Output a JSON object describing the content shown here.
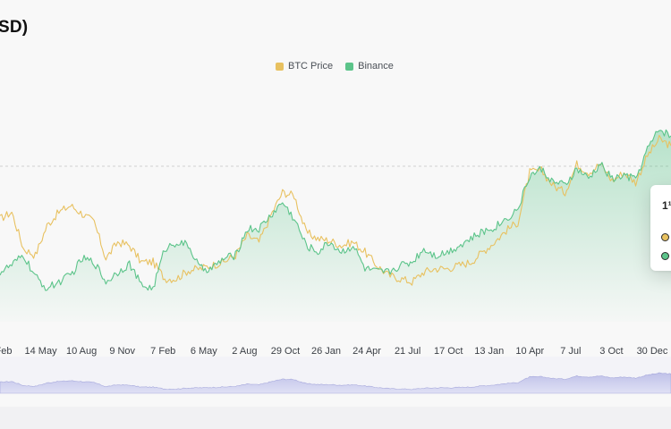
{
  "header": {
    "title": "SD)"
  },
  "legend": [
    {
      "label": "BTC Price",
      "color": "#e8c160"
    },
    {
      "label": "Binance",
      "color": "#5cc48a"
    }
  ],
  "tooltip": {
    "date_fragment": "1¹"
  },
  "chart_data": {
    "type": "line",
    "title": "SD)",
    "x_tick_labels": [
      "Feb",
      "14 May",
      "10 Aug",
      "9 Nov",
      "7 Feb",
      "6 May",
      "2 Aug",
      "29 Oct",
      "26 Jan",
      "24 Apr",
      "21 Jul",
      "17 Oct",
      "13 Jan",
      "10 Apr",
      "7 Jul",
      "3 Oct",
      "30 Dec"
    ],
    "series": [
      {
        "name": "BTC Price",
        "color": "#e8c160",
        "values": [
          62,
          66,
          44,
          40,
          58,
          66,
          70,
          65,
          60,
          38,
          48,
          46,
          36,
          36,
          26,
          26,
          31,
          32,
          34,
          36,
          40,
          52,
          48,
          64,
          78,
          76,
          54,
          50,
          49,
          46,
          48,
          42,
          34,
          28,
          26,
          24,
          30,
          32,
          32,
          34,
          36,
          42,
          48,
          55,
          60,
          90,
          91,
          82,
          78,
          95,
          90,
          95,
          85,
          90,
          84,
          100,
          110,
          106
        ]
      },
      {
        "name": "Binance",
        "color": "#5cc48a",
        "values": [
          30,
          34,
          40,
          27,
          20,
          24,
          28,
          38,
          36,
          24,
          30,
          35,
          22,
          20,
          44,
          48,
          46,
          32,
          32,
          38,
          40,
          56,
          56,
          64,
          72,
          62,
          46,
          42,
          48,
          42,
          46,
          32,
          30,
          30,
          34,
          36,
          44,
          40,
          42,
          46,
          50,
          54,
          57,
          62,
          68,
          88,
          92,
          84,
          82,
          92,
          86,
          95,
          86,
          88,
          86,
          104,
          116,
          112
        ]
      }
    ],
    "ylim": [
      0,
      140
    ],
    "grid": false,
    "legend_position": "top-center",
    "navigator": true
  }
}
